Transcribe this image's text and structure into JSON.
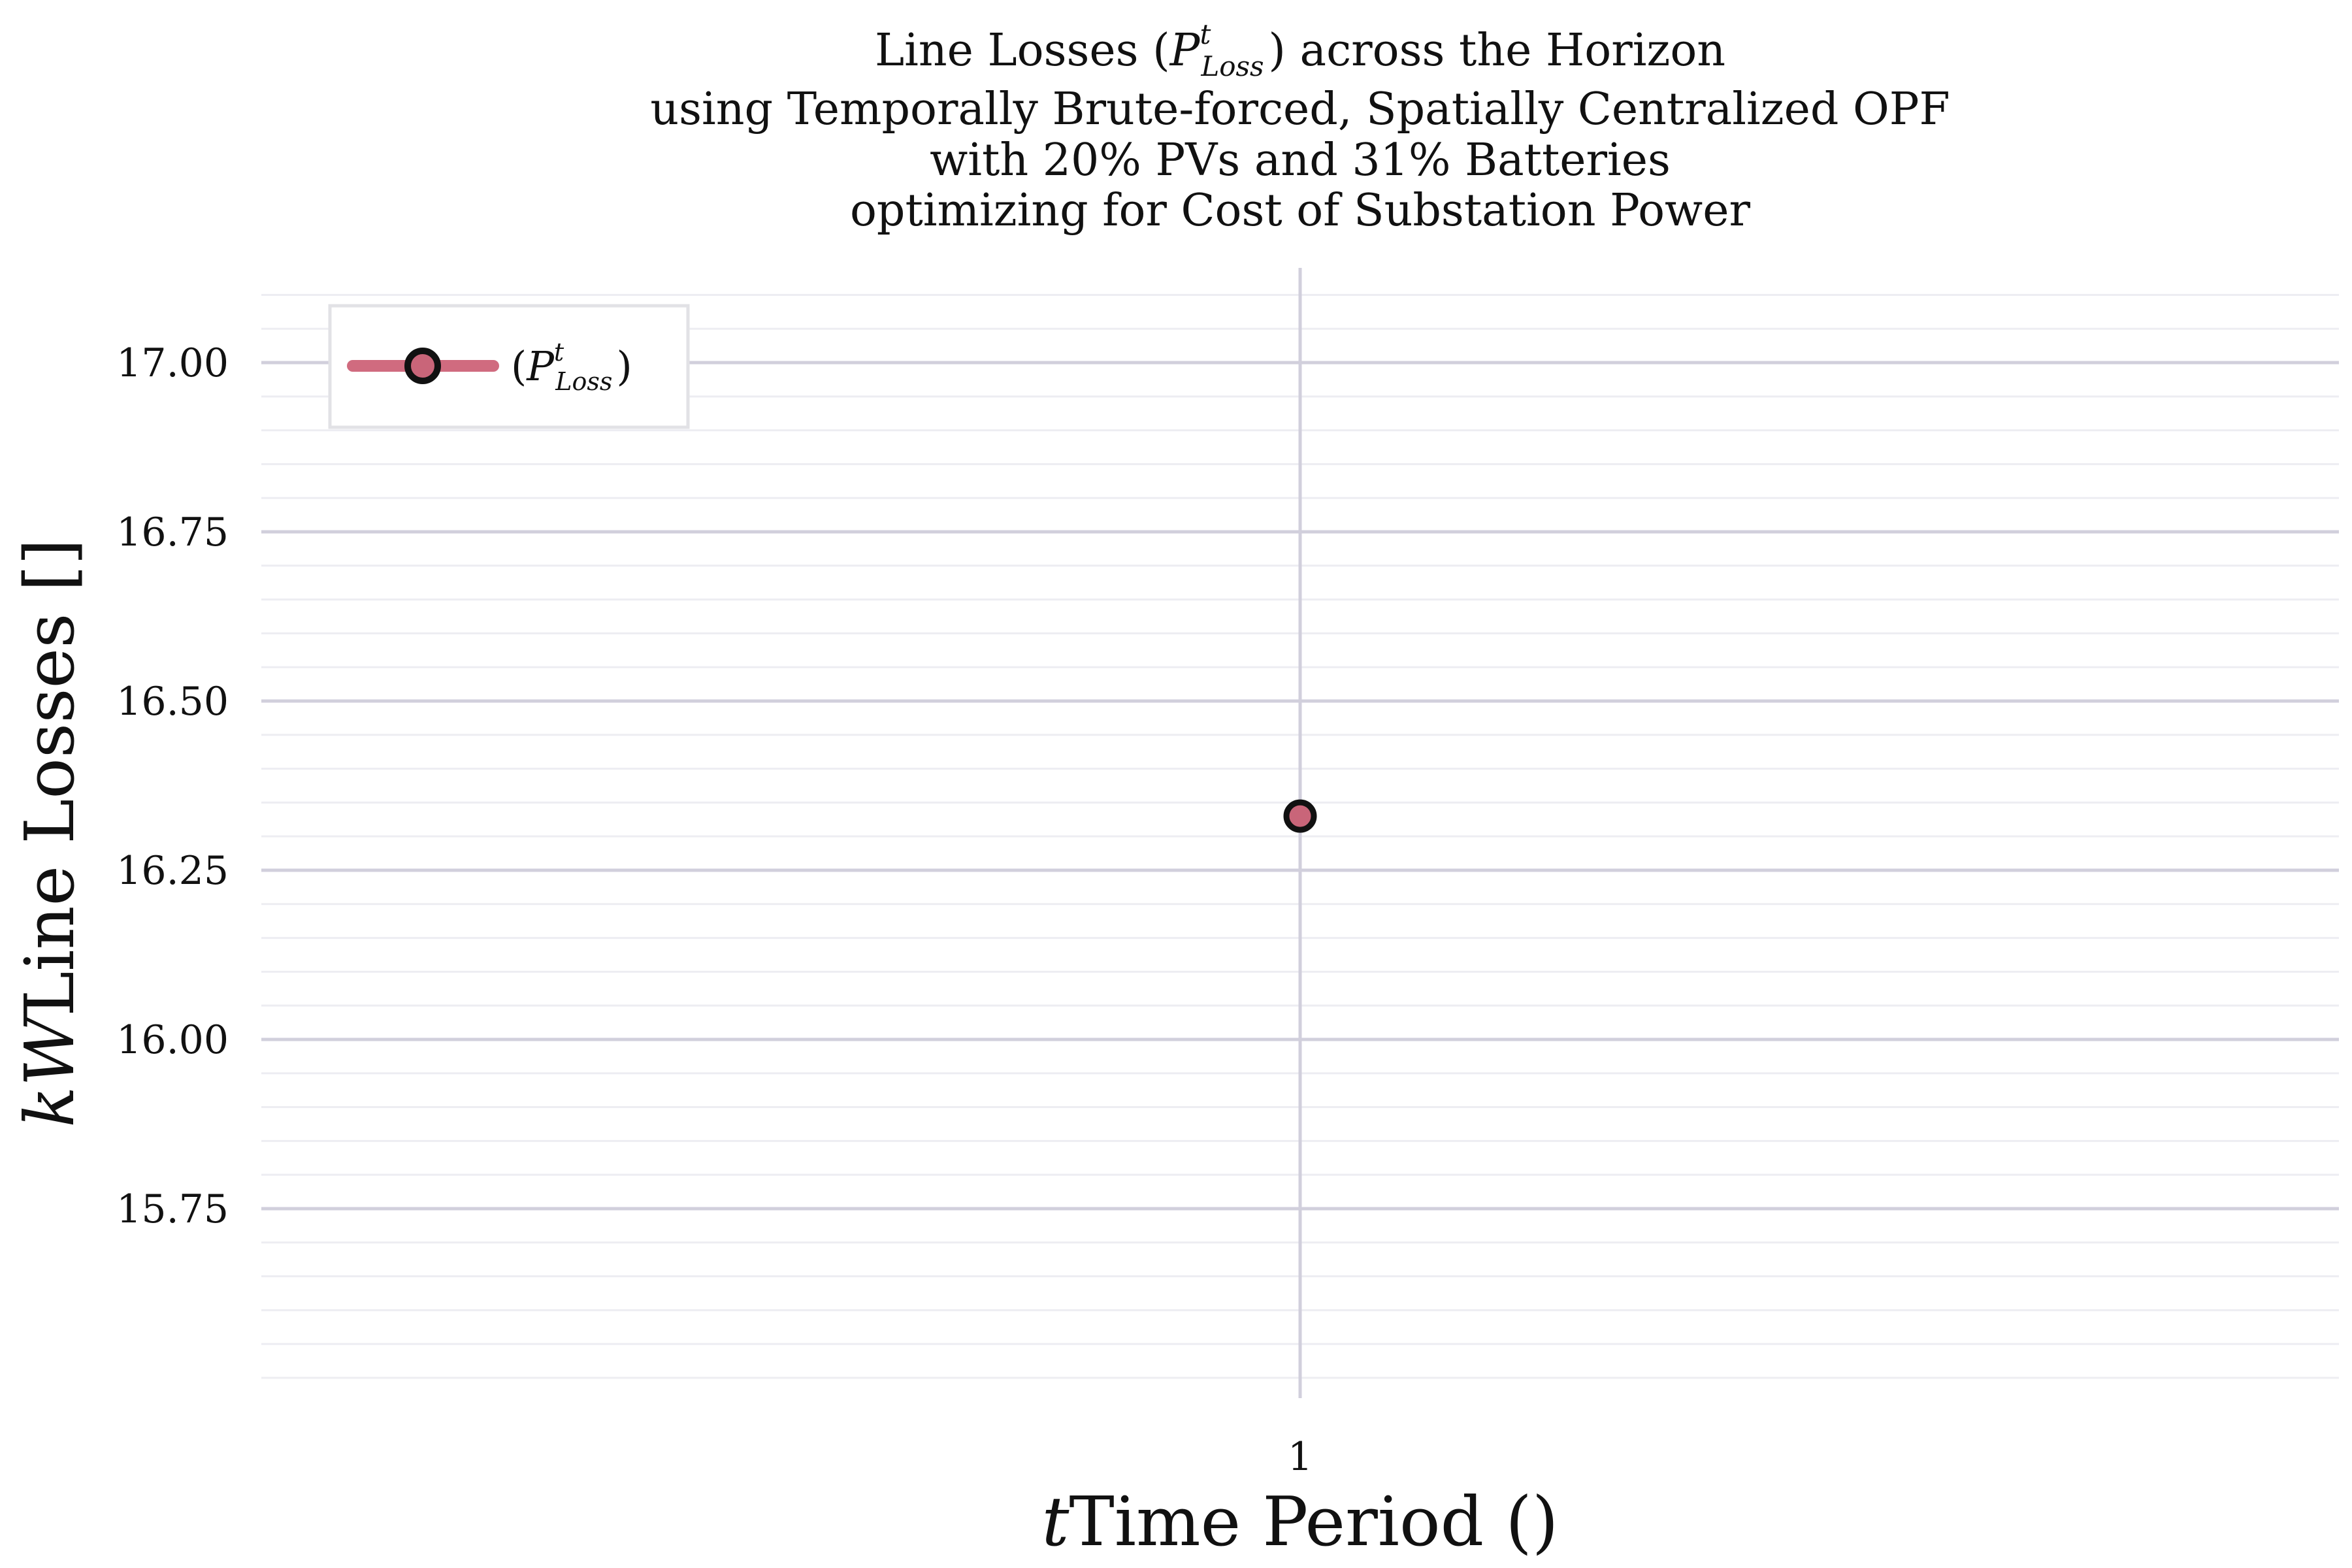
{
  "chart_data": {
    "type": "line",
    "title_lines": [
      {
        "before": "Line Losses (",
        "var": "P",
        "sup": "t",
        "sub": "Loss",
        "after": ") across the Horizon"
      },
      {
        "text": "using Temporally Brute-forced, Spatially Centralized OPF"
      },
      {
        "text": "with 20% PVs and 31% Batteries"
      },
      {
        "text": "optimizing for Cost of Substation Power"
      }
    ],
    "xlabel": {
      "text": "Time Period (",
      "var": "t",
      "after": ")"
    },
    "ylabel": {
      "text": "Line Losses [",
      "var": "kW",
      "after": "]"
    },
    "x": [
      1
    ],
    "series": [
      {
        "name": {
          "before": "(",
          "var": "P",
          "sup": "t",
          "sub": "Loss",
          "after": ")"
        },
        "values": [
          16.33
        ],
        "line_color": "#d06b7f",
        "marker_fill": "#c96579",
        "marker_edge": "#111111"
      }
    ],
    "xticks": [
      {
        "value": 1,
        "label": "1"
      }
    ],
    "yticks": [
      {
        "value": 15.75,
        "label": "15.75"
      },
      {
        "value": 16.0,
        "label": "16.00"
      },
      {
        "value": 16.25,
        "label": "16.25"
      },
      {
        "value": 16.5,
        "label": "16.50"
      },
      {
        "value": 16.75,
        "label": "16.75"
      },
      {
        "value": 17.0,
        "label": "17.00"
      }
    ],
    "ylim": [
      15.47,
      17.14
    ],
    "xlim": [
      0,
      2
    ],
    "minor_y_step": 0.05,
    "grid": true,
    "legend_position": "top-left",
    "colors": {
      "major_grid": "#d1cfdc",
      "minor_grid": "#ededf2",
      "legend_border": "#e2e2e6"
    }
  }
}
